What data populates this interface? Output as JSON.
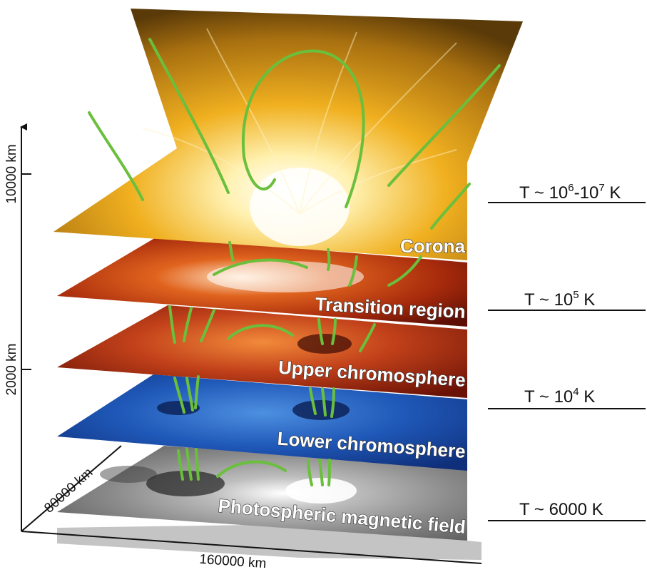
{
  "layers": [
    {
      "label": "Photospheric magnetic field",
      "temperature": "T ~ 6000 K"
    },
    {
      "label": "Lower chromosphere",
      "temperature": "T ~ 10⁴ K"
    },
    {
      "label": "Upper chromosphere",
      "temperature": "T ~ 10⁵ K"
    },
    {
      "label": "Transition region",
      "temperature": "T ~ 10⁶-10⁷ K"
    },
    {
      "label": "Corona"
    }
  ],
  "axes": {
    "height_ticks": [
      "2000 km",
      "10000 km"
    ],
    "width_label": "160000 km",
    "depth_label": "80000 km"
  },
  "colors": {
    "field_lines": "#6abf3c",
    "photosphere": "#9a9a9a",
    "lower_chromosphere": "#1f58b8",
    "upper_chromosphere": "#b53410",
    "transition_region": "#b52a0e",
    "corona": "#d9a010"
  }
}
